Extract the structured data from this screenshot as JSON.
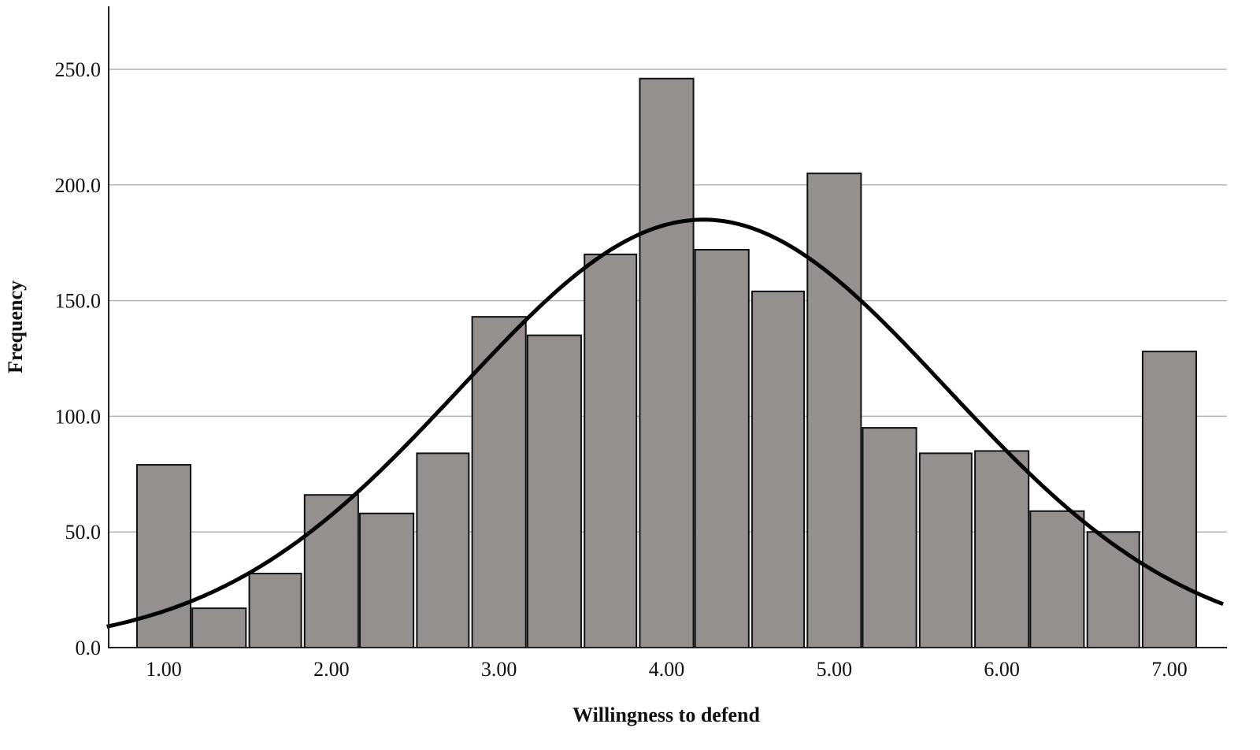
{
  "chart_data": {
    "type": "bar",
    "subtype": "histogram_with_normal_curve",
    "title": "",
    "xlabel": "Willingness to defend",
    "ylabel": "Frequency",
    "ylim": [
      0,
      275
    ],
    "xlim": [
      0.66,
      7.33
    ],
    "grid": {
      "horizontal": true,
      "vertical": false
    },
    "legend": null,
    "yticks": [
      0,
      50,
      100,
      150,
      200,
      250
    ],
    "ytick_labels": [
      "0.0",
      "50.0",
      "100.0",
      "150.0",
      "200.0",
      "250.0"
    ],
    "xticks": [
      1,
      2,
      3,
      4,
      5,
      6,
      7
    ],
    "xtick_labels": [
      "1.00",
      "2.00",
      "3.00",
      "4.00",
      "5.00",
      "6.00",
      "7.00"
    ],
    "bin_width": 0.333,
    "bins": [
      {
        "x0": 0.84,
        "x1": 1.16,
        "value": 79
      },
      {
        "x0": 1.17,
        "x1": 1.49,
        "value": 17
      },
      {
        "x0": 1.51,
        "x1": 1.82,
        "value": 32
      },
      {
        "x0": 1.84,
        "x1": 2.16,
        "value": 66
      },
      {
        "x0": 2.17,
        "x1": 2.49,
        "value": 58
      },
      {
        "x0": 2.51,
        "x1": 2.82,
        "value": 84
      },
      {
        "x0": 2.84,
        "x1": 3.16,
        "value": 143
      },
      {
        "x0": 3.17,
        "x1": 3.49,
        "value": 135
      },
      {
        "x0": 3.51,
        "x1": 3.82,
        "value": 170
      },
      {
        "x0": 3.84,
        "x1": 4.16,
        "value": 246
      },
      {
        "x0": 4.17,
        "x1": 4.49,
        "value": 172
      },
      {
        "x0": 4.51,
        "x1": 4.82,
        "value": 154
      },
      {
        "x0": 4.84,
        "x1": 5.16,
        "value": 205
      },
      {
        "x0": 5.17,
        "x1": 5.49,
        "value": 95
      },
      {
        "x0": 5.51,
        "x1": 5.82,
        "value": 84
      },
      {
        "x0": 5.84,
        "x1": 6.16,
        "value": 85
      },
      {
        "x0": 6.17,
        "x1": 6.49,
        "value": 59
      },
      {
        "x0": 6.51,
        "x1": 6.82,
        "value": 50
      },
      {
        "x0": 6.84,
        "x1": 7.16,
        "value": 128
      }
    ],
    "normal_curve": {
      "mean": 4.22,
      "sd": 1.45,
      "peak": 185
    },
    "colors": {
      "bar_fill": "#958f8e",
      "bar_stroke": "#111111",
      "curve": "#000000",
      "grid": "#b3b3b3",
      "axis": "#222222"
    }
  }
}
